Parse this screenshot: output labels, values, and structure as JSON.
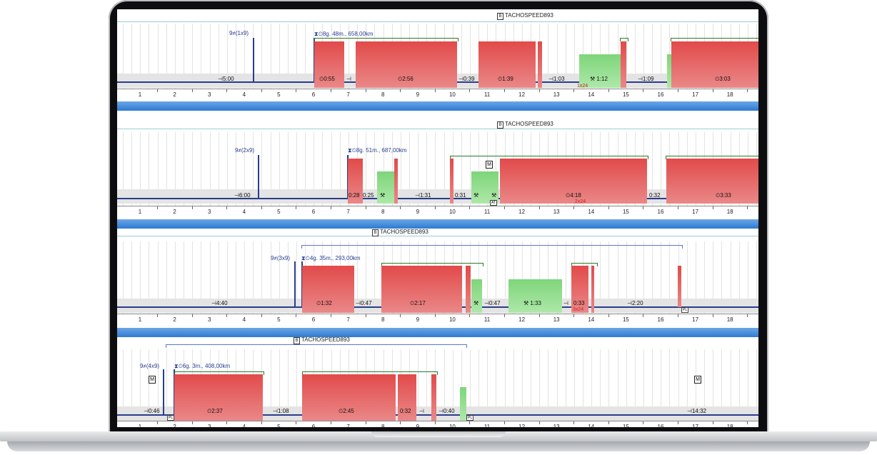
{
  "vehicle_label": "TACHOSPEED893",
  "badge_b": "B",
  "badge_m": "M",
  "tag_at": "AT",
  "tag_pl": "PL",
  "hours": [
    "1",
    "2",
    "3",
    "4",
    "5",
    "6",
    "7",
    "8",
    "9",
    "10",
    "11",
    "12",
    "13",
    "14",
    "15",
    "16",
    "17",
    "18"
  ],
  "days": [
    {
      "rest_prev": "9≠(1x9)",
      "summary": "⧗⏲8g. 48m., 658,00km",
      "labels": [
        "⊣5:00",
        "⏲0:55",
        "⊣",
        "⏲2:56",
        "⊣0:39",
        "⏲1:39",
        "⊣1:03",
        "⚒ 1:12",
        "⊣1:09",
        "⏲3:03"
      ],
      "note": "1x24"
    },
    {
      "rest_prev": "9≠(2x9)",
      "summary": "⧗⏲8g. 51m., 687,00km",
      "labels": [
        "⊣6:00",
        "0:28",
        "0:25",
        "⚒",
        "⊣1:31",
        "0:31",
        "⚒",
        "⚒",
        "⏲4:18",
        "0:32",
        "⏲3:33"
      ],
      "note": "2x24"
    },
    {
      "rest_prev": "9≠(3x9)",
      "summary": "⧗⏲4g. 35m., 293,00km",
      "labels": [
        "⊣4:40",
        "⏲1:32",
        "⊣0:47",
        "⏲2:17",
        "⚒",
        "⊣0:47",
        "⚒ 1:33",
        "⊣",
        "0:33",
        "⊣2:20"
      ],
      "note": "3x24"
    },
    {
      "rest_prev": "9≠(4x9)",
      "summary": "⧗⏲6g. 3m., 408,00km",
      "labels": [
        "⊣0:46",
        "⏲2:37",
        "⊣1:08",
        "⏲2:45",
        "0:32",
        "⊣",
        "⊣0:40",
        "⊣14:32"
      ],
      "note": ""
    }
  ]
}
